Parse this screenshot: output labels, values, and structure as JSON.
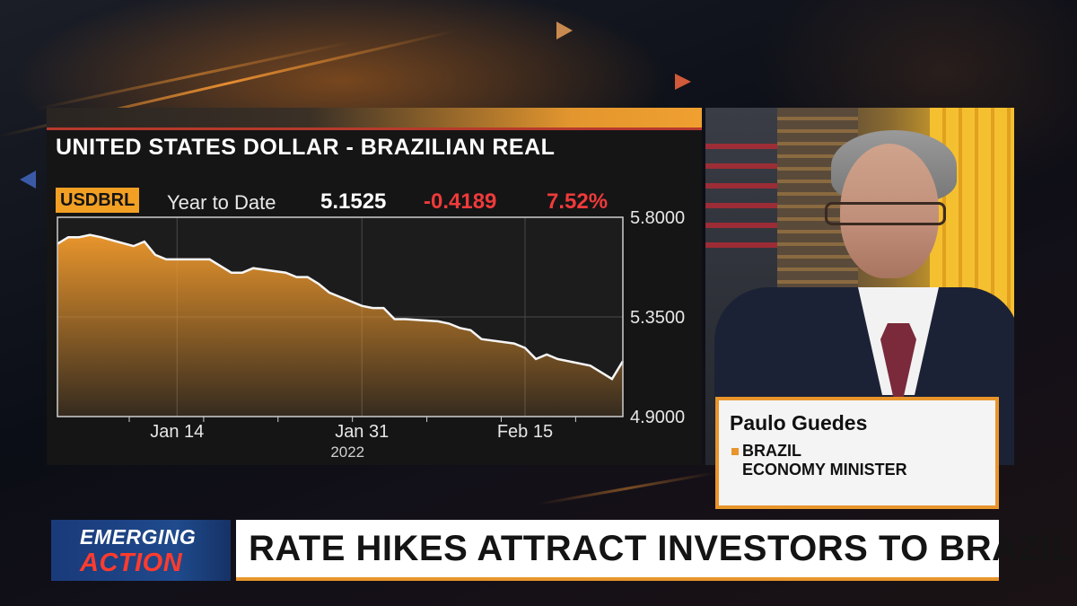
{
  "chart": {
    "title": "UNITED STATES DOLLAR - BRAZILIAN REAL",
    "ticker": "USDBRL",
    "period": "Year to Date",
    "last": "5.1525",
    "net_change": "-0.4189",
    "pct_change": "7.52%"
  },
  "chart_data": {
    "type": "area",
    "title": "UNITED STATES DOLLAR - BRAZILIAN REAL",
    "x_tick_labels": [
      "Jan 14",
      "Jan 31",
      "Feb 15"
    ],
    "x_year_label": "2022",
    "y_tick_labels": [
      "5.8000",
      "5.3500",
      "4.9000"
    ],
    "ylim": [
      4.9,
      5.8
    ],
    "x_range": [
      "2022-01-03",
      "2022-02-24"
    ],
    "series": [
      {
        "dates": [
          "2022-01-03",
          "2022-01-04",
          "2022-01-05",
          "2022-01-06",
          "2022-01-07",
          "2022-01-10",
          "2022-01-11",
          "2022-01-12",
          "2022-01-13",
          "2022-01-14",
          "2022-01-17",
          "2022-01-18",
          "2022-01-19",
          "2022-01-20",
          "2022-01-21",
          "2022-01-24",
          "2022-01-25",
          "2022-01-26",
          "2022-01-27",
          "2022-01-28",
          "2022-01-31",
          "2022-02-01",
          "2022-02-02",
          "2022-02-03",
          "2022-02-04",
          "2022-02-07",
          "2022-02-08",
          "2022-02-09",
          "2022-02-10",
          "2022-02-11",
          "2022-02-14",
          "2022-02-15",
          "2022-02-16",
          "2022-02-17",
          "2022-02-18",
          "2022-02-21",
          "2022-02-22",
          "2022-02-23",
          "2022-02-24"
        ],
        "values": [
          5.68,
          5.71,
          5.71,
          5.72,
          5.71,
          5.67,
          5.69,
          5.63,
          5.61,
          5.61,
          5.61,
          5.58,
          5.55,
          5.55,
          5.57,
          5.55,
          5.53,
          5.53,
          5.5,
          5.46,
          5.4,
          5.39,
          5.39,
          5.34,
          5.34,
          5.33,
          5.32,
          5.3,
          5.29,
          5.25,
          5.23,
          5.21,
          5.16,
          5.18,
          5.16,
          5.13,
          5.1,
          5.07,
          5.15
        ]
      }
    ],
    "fill_color": "#e8952c",
    "grid": true
  },
  "guest": {
    "name": "Paulo Guedes",
    "title_line1": "BRAZIL",
    "title_line2": "ECONOMY MINISTER"
  },
  "ticker_bar": {
    "show_line1": "EMERGING",
    "show_line2": "ACTION",
    "headline": "RATE HIKES ATTRACT INVESTORS TO BRAZIL"
  },
  "colors": {
    "accent": "#e8952c",
    "negative": "#f03a3a",
    "show_blue": "#1f4a8c"
  }
}
